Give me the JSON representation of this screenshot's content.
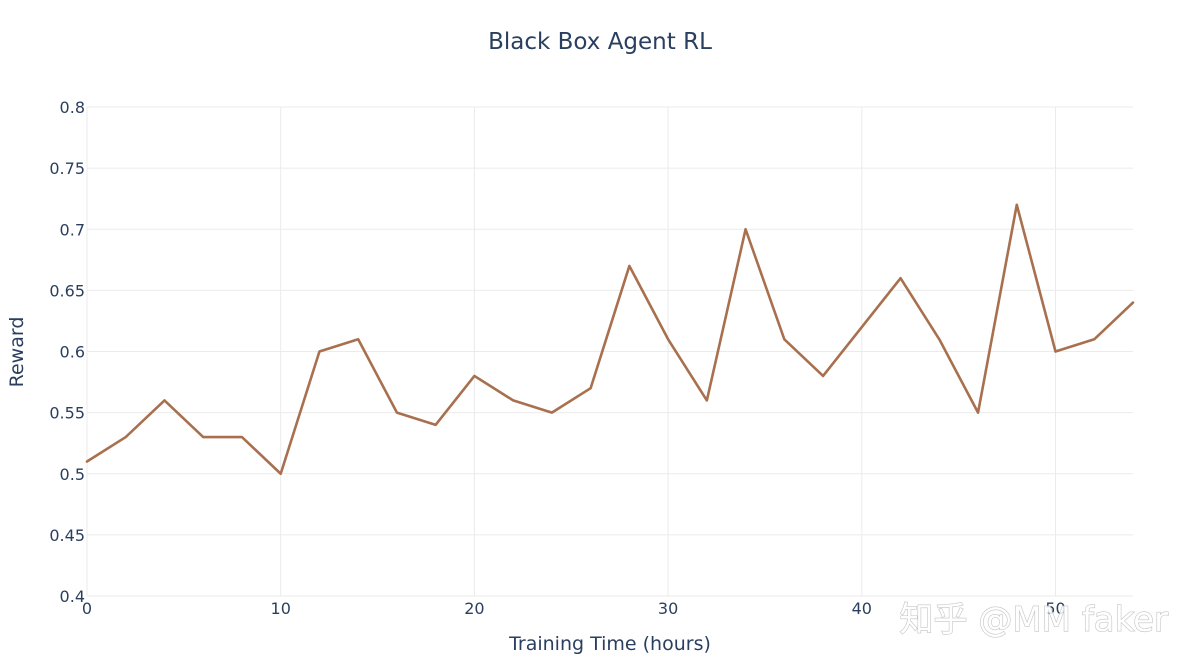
{
  "chart_data": {
    "type": "line",
    "title": "Black Box Agent RL",
    "xlabel": "Training Time (hours)",
    "ylabel": "Reward",
    "xlim": [
      0,
      54
    ],
    "ylim": [
      0.4,
      0.8
    ],
    "x_ticks": [
      0,
      10,
      20,
      30,
      40,
      50
    ],
    "x_tick_labels": [
      "0",
      "10",
      "20",
      "30",
      "40",
      "50"
    ],
    "y_ticks": [
      0.4,
      0.45,
      0.5,
      0.55,
      0.6,
      0.65,
      0.7,
      0.75,
      0.8
    ],
    "y_tick_labels": [
      "0.4",
      "0.45",
      "0.5",
      "0.55",
      "0.6",
      "0.65",
      "0.7",
      "0.75",
      "0.8"
    ],
    "grid": true,
    "series": [
      {
        "color": "#a8704e",
        "x": [
          0,
          2,
          4,
          6,
          8,
          10,
          12,
          14,
          16,
          18,
          20,
          22,
          24,
          26,
          28,
          30,
          32,
          34,
          36,
          38,
          40,
          42,
          44,
          46,
          48,
          50,
          52,
          54
        ],
        "y": [
          0.51,
          0.53,
          0.56,
          0.53,
          0.53,
          0.5,
          0.6,
          0.61,
          0.55,
          0.54,
          0.58,
          0.56,
          0.55,
          0.57,
          0.67,
          0.61,
          0.56,
          0.7,
          0.61,
          0.58,
          0.62,
          0.66,
          0.61,
          0.55,
          0.72,
          0.6,
          0.61,
          0.64
        ]
      }
    ]
  },
  "watermark": "知乎 @MM faker",
  "colors": {
    "grid": "#ebebeb",
    "text": "#2a3f5f",
    "line": "#a8704e"
  }
}
